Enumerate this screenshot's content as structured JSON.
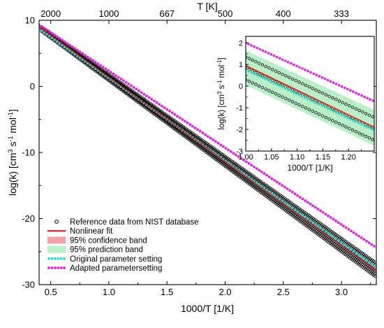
{
  "chart_data": [
    {
      "type": "scatter",
      "xlabel": "1000/T [1/K]",
      "ylabel": "log(k) [cm",
      "ylabel_sup1": "3",
      "ylabel_mid": " s",
      "ylabel_sup2": "-1",
      "ylabel_mid2": " mol",
      "ylabel_sup3": "-1",
      "ylabel_end": "]",
      "top_xlabel": "T [K]",
      "xlim": [
        0.4,
        3.3
      ],
      "ylim": [
        -30,
        10
      ],
      "x_ticks": [
        0.5,
        1.0,
        1.5,
        2.0,
        2.5,
        3.0
      ],
      "x_tick_labels": [
        "0.5",
        "1.0",
        "1.5",
        "2.0",
        "2.5",
        "3.0"
      ],
      "y_ticks": [
        10,
        0,
        -10,
        -20,
        -30
      ],
      "y_tick_labels": [
        "10",
        "0",
        "-10",
        "-20",
        "-30"
      ],
      "top_ticks_inverse_x": [
        0.5,
        1.0,
        1.5,
        2.0,
        2.5,
        3.0
      ],
      "top_tick_labels": [
        "2000",
        "1000",
        "667",
        "500",
        "400",
        "333"
      ],
      "legend": [
        {
          "label": "Reference data from NIST database",
          "style": "circle"
        },
        {
          "label": "Nonlinear fit",
          "style": "line",
          "color": "#e41a1c"
        },
        {
          "label": "95% confidence band",
          "style": "rect",
          "color": "#f4a3a3"
        },
        {
          "label": "95% prediction band",
          "style": "rect",
          "color": "#b9f0c8"
        },
        {
          "label": "Original parameter setting",
          "style": "dots",
          "color": "#36d6cf"
        },
        {
          "label": "Adapted parametersetting",
          "style": "dots",
          "color": "#e61ee6"
        }
      ],
      "series": [
        {
          "role": "reference_upper",
          "x": [
            0.4,
            3.3
          ],
          "y": [
            9.3,
            -26.7
          ]
        },
        {
          "role": "reference_lower",
          "x": [
            0.4,
            3.3
          ],
          "y": [
            8.6,
            -28.9
          ]
        },
        {
          "role": "nonlinear_fit",
          "x": [
            0.4,
            3.3
          ],
          "y": [
            9.0,
            -27.9
          ]
        },
        {
          "role": "original",
          "x": [
            0.4,
            3.3
          ],
          "y": [
            8.7,
            -27.4
          ]
        },
        {
          "role": "adapted",
          "x": [
            0.4,
            3.3
          ],
          "y": [
            9.3,
            -24.4
          ]
        }
      ]
    },
    {
      "type": "scatter",
      "xlabel": "1000/T [1/K]",
      "ylabel": "log(k) [cm",
      "ylabel_sup1": "3",
      "ylabel_mid": " s",
      "ylabel_sup2": "-1",
      "ylabel_mid2": " mol",
      "ylabel_sup3": "-1",
      "ylabel_end": "]",
      "xlim": [
        1.0,
        1.25
      ],
      "ylim": [
        -3,
        2.3
      ],
      "x_ticks": [
        1.0,
        1.05,
        1.1,
        1.15,
        1.2
      ],
      "x_tick_labels": [
        "1.00",
        "1.05",
        "1.10",
        "1.15",
        "1.20"
      ],
      "y_ticks": [
        2,
        1,
        0,
        -1,
        -2,
        -3
      ],
      "y_tick_labels": [
        "2",
        "1",
        "0",
        "-1",
        "-2",
        "-3"
      ],
      "series": [
        {
          "role": "reference_top",
          "x": [
            1.0,
            1.25
          ],
          "y": [
            1.35,
            -1.45
          ]
        },
        {
          "role": "reference_mid",
          "x": [
            1.0,
            1.25
          ],
          "y": [
            0.85,
            -1.95
          ]
        },
        {
          "role": "reference_bottom",
          "x": [
            1.0,
            1.25
          ],
          "y": [
            0.3,
            -2.5
          ]
        },
        {
          "role": "prediction_band_upper",
          "x": [
            1.0,
            1.25
          ],
          "y": [
            1.65,
            -1.1
          ]
        },
        {
          "role": "prediction_band_lower",
          "x": [
            1.0,
            1.25
          ],
          "y": [
            0.05,
            -2.75
          ]
        },
        {
          "role": "nonlinear_fit",
          "x": [
            1.0,
            1.25
          ],
          "y": [
            0.95,
            -1.9
          ]
        },
        {
          "role": "original",
          "x": [
            1.0,
            1.25
          ],
          "y": [
            0.75,
            -2.05
          ]
        },
        {
          "role": "adapted",
          "x": [
            1.0,
            1.25
          ],
          "y": [
            2.0,
            -0.7
          ]
        }
      ]
    }
  ]
}
